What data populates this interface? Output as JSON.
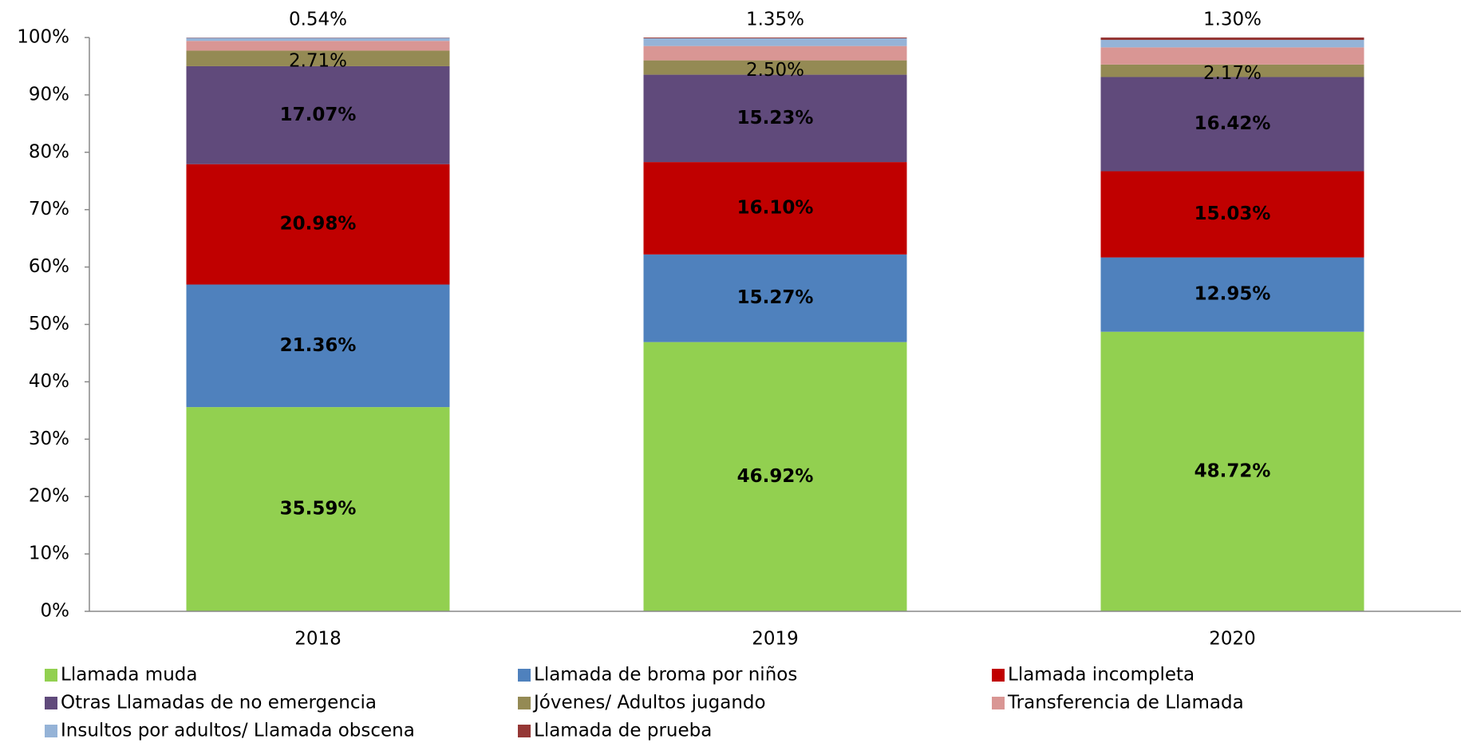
{
  "chart_data": {
    "type": "stacked_bar",
    "categories": [
      "2018",
      "2019",
      "2020"
    ],
    "ylim": [
      0,
      100
    ],
    "yticks": [
      {
        "value": 0,
        "label": "0%"
      },
      {
        "value": 10,
        "label": "10%"
      },
      {
        "value": 20,
        "label": "20%"
      },
      {
        "value": 30,
        "label": "30%"
      },
      {
        "value": 40,
        "label": "40%"
      },
      {
        "value": 50,
        "label": "50%"
      },
      {
        "value": 60,
        "label": "60%"
      },
      {
        "value": 70,
        "label": "70%"
      },
      {
        "value": 80,
        "label": "80%"
      },
      {
        "value": 90,
        "label": "90%"
      },
      {
        "value": 100,
        "label": "100%"
      }
    ],
    "legend": "bottom",
    "series": [
      {
        "name": "Llamada muda",
        "color": "#92d050",
        "label_color": "#000000",
        "values": [
          35.59,
          46.92,
          48.72
        ],
        "value_labels": [
          "35.59%",
          "46.92%",
          "48.72%"
        ]
      },
      {
        "name": "Llamada de broma por niños",
        "color": "#4f81bd",
        "label_color": "#000000",
        "values": [
          21.36,
          15.27,
          12.95
        ],
        "value_labels": [
          "21.36%",
          "15.27%",
          "12.95%"
        ]
      },
      {
        "name": "Llamada incompleta",
        "color": "#c00000",
        "label_color": "#ffffff",
        "values": [
          20.98,
          16.1,
          15.03
        ],
        "value_labels": [
          "20.98%",
          "16.10%",
          "15.03%"
        ]
      },
      {
        "name": "Otras Llamadas de no emergencia",
        "color": "#604a7b",
        "label_color": "#ffffff",
        "values": [
          17.07,
          15.23,
          16.42
        ],
        "value_labels": [
          "17.07%",
          "15.23%",
          "16.42%"
        ]
      },
      {
        "name": "Jóvenes/ Adultos jugando",
        "color": "#948a54",
        "label_color": "#000000",
        "values": [
          2.71,
          2.5,
          2.17
        ],
        "value_labels": [
          "2.71%",
          "2.50%",
          "2.17%"
        ]
      },
      {
        "name": "Transferencia de Llamada",
        "color": "#d99694",
        "values": [
          1.7,
          2.5,
          2.99
        ]
      },
      {
        "name": "Insultos por adultos/ Llamada obscena",
        "color": "#95b3d7",
        "label_color": "#000000",
        "values": [
          0.54,
          1.35,
          1.3
        ],
        "value_labels": [
          "0.54%",
          "1.35%",
          "1.30%"
        ]
      },
      {
        "name": "Llamada de prueba",
        "color": "#953735",
        "values": [
          0.05,
          0.13,
          0.42
        ]
      }
    ]
  }
}
